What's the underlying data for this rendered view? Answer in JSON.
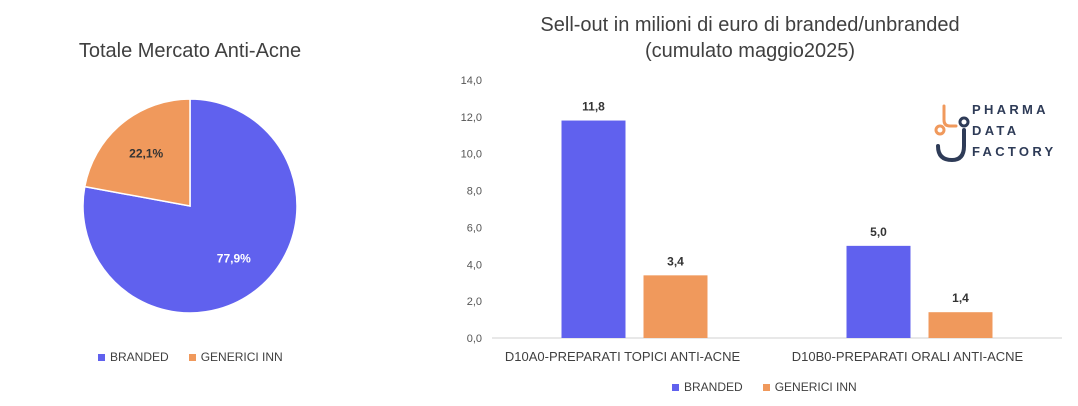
{
  "logo": {
    "lines": [
      "PHARMA",
      "DATA",
      "FACTORY"
    ]
  },
  "chart_data": [
    {
      "type": "pie",
      "title": "Totale Mercato Anti-Acne",
      "slices": [
        {
          "label": "BRANDED",
          "value": 77.9,
          "display": "77,9%",
          "color": "#6061ee"
        },
        {
          "label": "GENERICI INN",
          "value": 22.1,
          "display": "22,1%",
          "color": "#f0995c"
        }
      ],
      "legend": [
        "BRANDED",
        "GENERICI INN"
      ],
      "legend_position": "bottom"
    },
    {
      "type": "bar",
      "title": "Sell-out in milioni di euro di branded/unbranded",
      "subtitle": "(cumulato maggio2025)",
      "categories": [
        "D10A0-PREPARATI TOPICI ANTI-ACNE",
        "D10B0-PREPARATI ORALI ANTI-ACNE"
      ],
      "series": [
        {
          "name": "BRANDED",
          "values": [
            11.8,
            5.0
          ],
          "labels": [
            "11,8",
            "5,0"
          ],
          "color": "#6061ee"
        },
        {
          "name": "GENERICI INN",
          "values": [
            3.4,
            1.4
          ],
          "labels": [
            "3,4",
            "1,4"
          ],
          "color": "#f0995c"
        }
      ],
      "ylim": [
        0,
        14
      ],
      "yticks": [
        "0,0",
        "2,0",
        "4,0",
        "6,0",
        "8,0",
        "10,0",
        "12,0",
        "14,0"
      ],
      "xlabel": "",
      "ylabel": "",
      "grid": false,
      "legend_position": "bottom"
    }
  ]
}
